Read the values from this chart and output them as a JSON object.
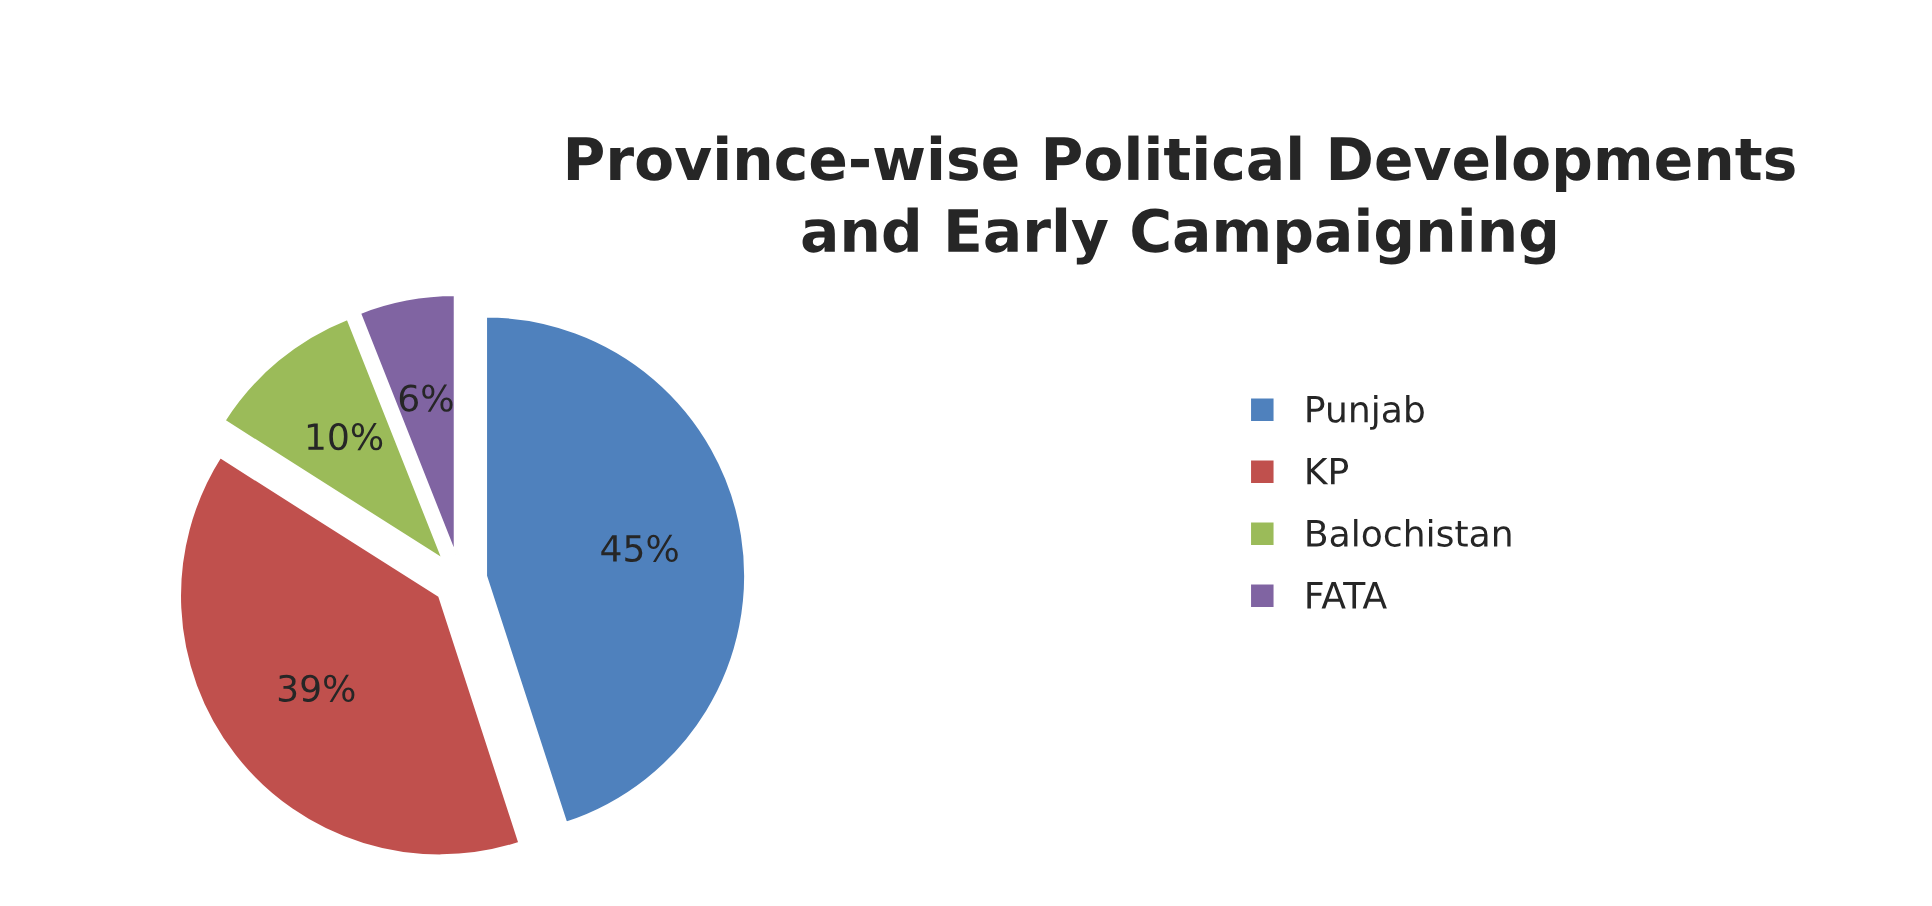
{
  "chart_data": {
    "type": "pie",
    "title": "Province-wise Political Developments\nand Early Campaigning",
    "categories": [
      "Punjab",
      "KP",
      "Balochistan",
      "FATA"
    ],
    "values": [
      45,
      39,
      10,
      6
    ],
    "colors": [
      "#4f81bd",
      "#c0504d",
      "#9bbb59",
      "#8064a2"
    ],
    "value_labels": [
      "45%",
      "39%",
      "10%",
      "6%"
    ],
    "legend": "right"
  }
}
